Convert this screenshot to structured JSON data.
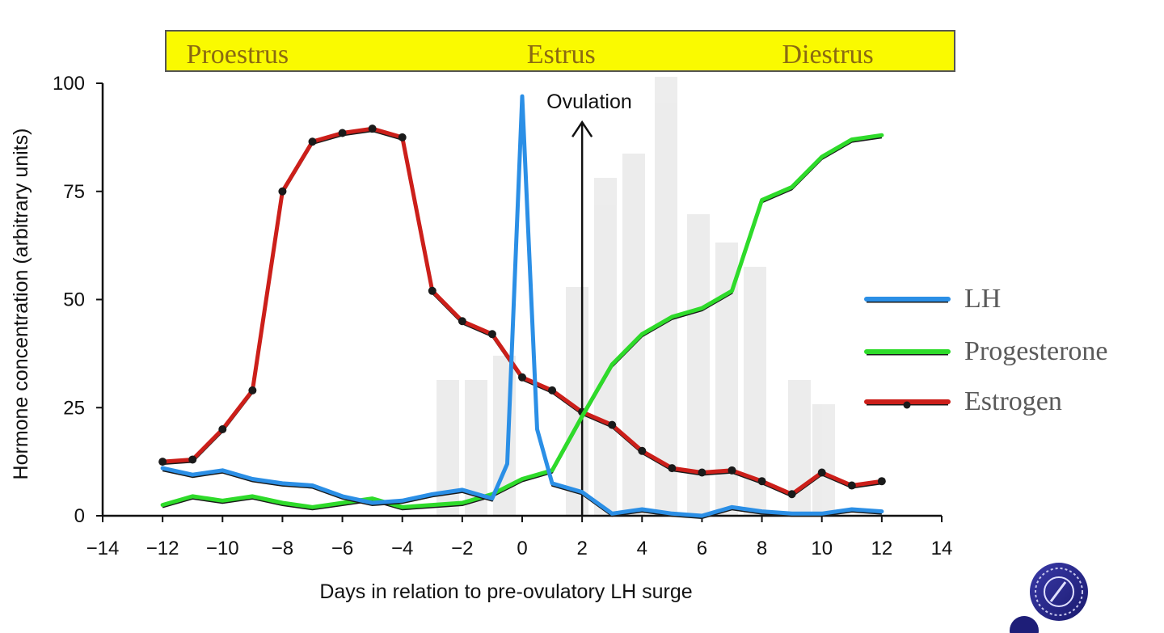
{
  "chart_data": {
    "type": "line",
    "title": "",
    "xlabel": "Days in relation to pre-ovulatory LH surge",
    "ylabel": "Hormone concentration (arbitrary units)",
    "xlim": [
      -14,
      14
    ],
    "ylim": [
      0,
      100
    ],
    "xticks": [
      -14,
      -12,
      -10,
      -8,
      -6,
      -4,
      -2,
      0,
      2,
      4,
      6,
      8,
      10,
      12,
      14
    ],
    "yticks": [
      0,
      25,
      50,
      75,
      100
    ],
    "phases": [
      {
        "label": "Proestrus",
        "x_center": -9.5
      },
      {
        "label": "Estrus",
        "x_center": 1.3
      },
      {
        "label": "Diestrus",
        "x_center": 10.2
      }
    ],
    "phase_band_range": [
      -12.1,
      14.4
    ],
    "annotation": {
      "label": "Ovulation",
      "x": 2,
      "y_from": 0,
      "y_to": 91
    },
    "series": [
      {
        "name": "LH",
        "color": "#2b8fe6",
        "markers": false,
        "x": [
          -12,
          -11,
          -10,
          -9,
          -8,
          -7,
          -6,
          -5,
          -4,
          -3,
          -2,
          -1,
          -0.5,
          0,
          0.5,
          1,
          2,
          3,
          4,
          5,
          6,
          7,
          8,
          9,
          10,
          11,
          12
        ],
        "y": [
          11,
          9.5,
          10.5,
          8.5,
          7.5,
          7,
          4.5,
          3,
          3.5,
          5,
          6,
          4,
          12,
          97,
          20,
          7.5,
          5.5,
          0.5,
          1.5,
          0.5,
          0,
          2,
          1,
          0.5,
          0.5,
          1.5,
          1
        ]
      },
      {
        "name": "Progesterone",
        "color": "#2edb2a",
        "markers": false,
        "x": [
          -12,
          -11,
          -10,
          -9,
          -8,
          -7,
          -6,
          -5,
          -4,
          -3,
          -2,
          -1,
          0,
          1,
          2,
          3,
          4,
          5,
          6,
          7,
          8,
          9,
          10,
          11,
          12
        ],
        "y": [
          2.5,
          4.5,
          3.5,
          4.5,
          3,
          2,
          3,
          4,
          2,
          2.5,
          3,
          5,
          8.5,
          10.5,
          23,
          35,
          42,
          46,
          48,
          52,
          73,
          76,
          83,
          87,
          88
        ]
      },
      {
        "name": "Estrogen",
        "color": "#cc1f1a",
        "markers": true,
        "x": [
          -12,
          -11,
          -10,
          -9,
          -8,
          -7,
          -6,
          -5,
          -4,
          -3,
          -2,
          -1,
          0,
          1,
          2,
          3,
          4,
          5,
          6,
          7,
          8,
          9,
          10,
          11,
          12
        ],
        "y": [
          12.5,
          13,
          20,
          29,
          75,
          86.5,
          88.5,
          89.5,
          87.5,
          52,
          45,
          42,
          32,
          29,
          24,
          21,
          15,
          11,
          10,
          10.5,
          8,
          5,
          10,
          7,
          8
        ]
      }
    ],
    "legend": {
      "position": "right",
      "entries": [
        "LH",
        "Progesterone",
        "Estrogen"
      ]
    }
  }
}
